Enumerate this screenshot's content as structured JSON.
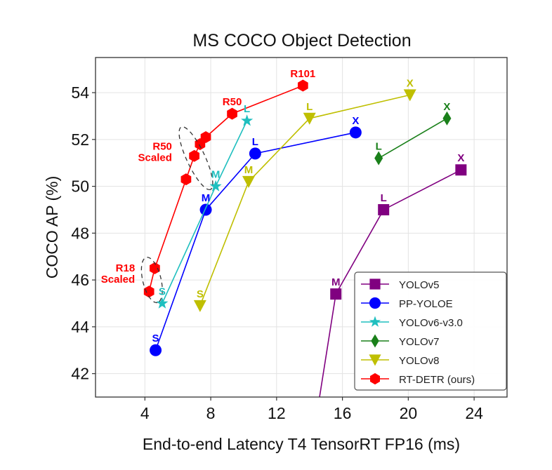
{
  "chart_data": {
    "type": "line",
    "title": "MS COCO Object Detection",
    "xlabel": "End-to-end Latency T4 TensorRT FP16 (ms)",
    "ylabel": "COCO AP (%)",
    "xlim": [
      1.0,
      26.0
    ],
    "ylim": [
      41.0,
      55.5
    ],
    "xticks": [
      4,
      8,
      12,
      16,
      20,
      24
    ],
    "yticks": [
      42,
      44,
      46,
      48,
      50,
      52,
      54
    ],
    "grid": true,
    "legend_position": "bottom-right",
    "series": [
      {
        "name": "YOLOv5",
        "color": "#800080",
        "marker": "square",
        "points": [
          {
            "x": 13.8,
            "y": 37.4,
            "label": ""
          },
          {
            "x": 15.6,
            "y": 45.4,
            "label": "M"
          },
          {
            "x": 18.5,
            "y": 49.0,
            "label": "L"
          },
          {
            "x": 23.2,
            "y": 50.7,
            "label": "X"
          }
        ]
      },
      {
        "name": "PP-YOLOE",
        "color": "#0000ff",
        "marker": "circle",
        "points": [
          {
            "x": 4.65,
            "y": 43.0,
            "label": "S"
          },
          {
            "x": 7.7,
            "y": 49.0,
            "label": "M"
          },
          {
            "x": 10.7,
            "y": 51.4,
            "label": "L"
          },
          {
            "x": 16.8,
            "y": 52.3,
            "label": "X"
          }
        ]
      },
      {
        "name": "YOLOv6-v3.0",
        "color": "#1fbfbf",
        "marker": "star",
        "points": [
          {
            "x": 5.05,
            "y": 45.0,
            "label": "S"
          },
          {
            "x": 8.3,
            "y": 50.0,
            "label": "M"
          },
          {
            "x": 10.2,
            "y": 52.8,
            "label": "L"
          }
        ]
      },
      {
        "name": "YOLOv7",
        "color": "#1a801a",
        "marker": "diamond",
        "points": [
          {
            "x": 18.2,
            "y": 51.2,
            "label": "L"
          },
          {
            "x": 22.35,
            "y": 52.9,
            "label": "X"
          }
        ]
      },
      {
        "name": "YOLOv8",
        "color": "#bfbf00",
        "marker": "triangle-down",
        "points": [
          {
            "x": 7.35,
            "y": 44.9,
            "label": "S"
          },
          {
            "x": 10.3,
            "y": 50.2,
            "label": "M"
          },
          {
            "x": 14.0,
            "y": 52.9,
            "label": "L"
          },
          {
            "x": 20.1,
            "y": 53.9,
            "label": "X"
          }
        ]
      },
      {
        "name": "RT-DETR (ours)",
        "color": "#ff0000",
        "marker": "hexagon",
        "points": [
          {
            "x": 4.25,
            "y": 45.5,
            "label": ""
          },
          {
            "x": 4.6,
            "y": 46.5,
            "label": ""
          },
          {
            "x": 6.5,
            "y": 50.3,
            "label": ""
          },
          {
            "x": 7.0,
            "y": 51.3,
            "label": ""
          },
          {
            "x": 7.35,
            "y": 51.8,
            "label": ""
          },
          {
            "x": 7.7,
            "y": 52.1,
            "label": ""
          },
          {
            "x": 9.3,
            "y": 53.1,
            "label": "R50"
          },
          {
            "x": 13.6,
            "y": 54.3,
            "label": "R101"
          }
        ]
      }
    ],
    "annotations": [
      {
        "text_lines": [
          "R18",
          "Scaled"
        ],
        "color": "#ff0000",
        "encircles": [
          0,
          1
        ],
        "series": "RT-DETR (ours)"
      },
      {
        "text_lines": [
          "R50",
          "Scaled"
        ],
        "color": "#ff0000",
        "encircles": [
          2,
          3,
          4,
          5
        ],
        "series": "RT-DETR (ours)"
      }
    ]
  }
}
